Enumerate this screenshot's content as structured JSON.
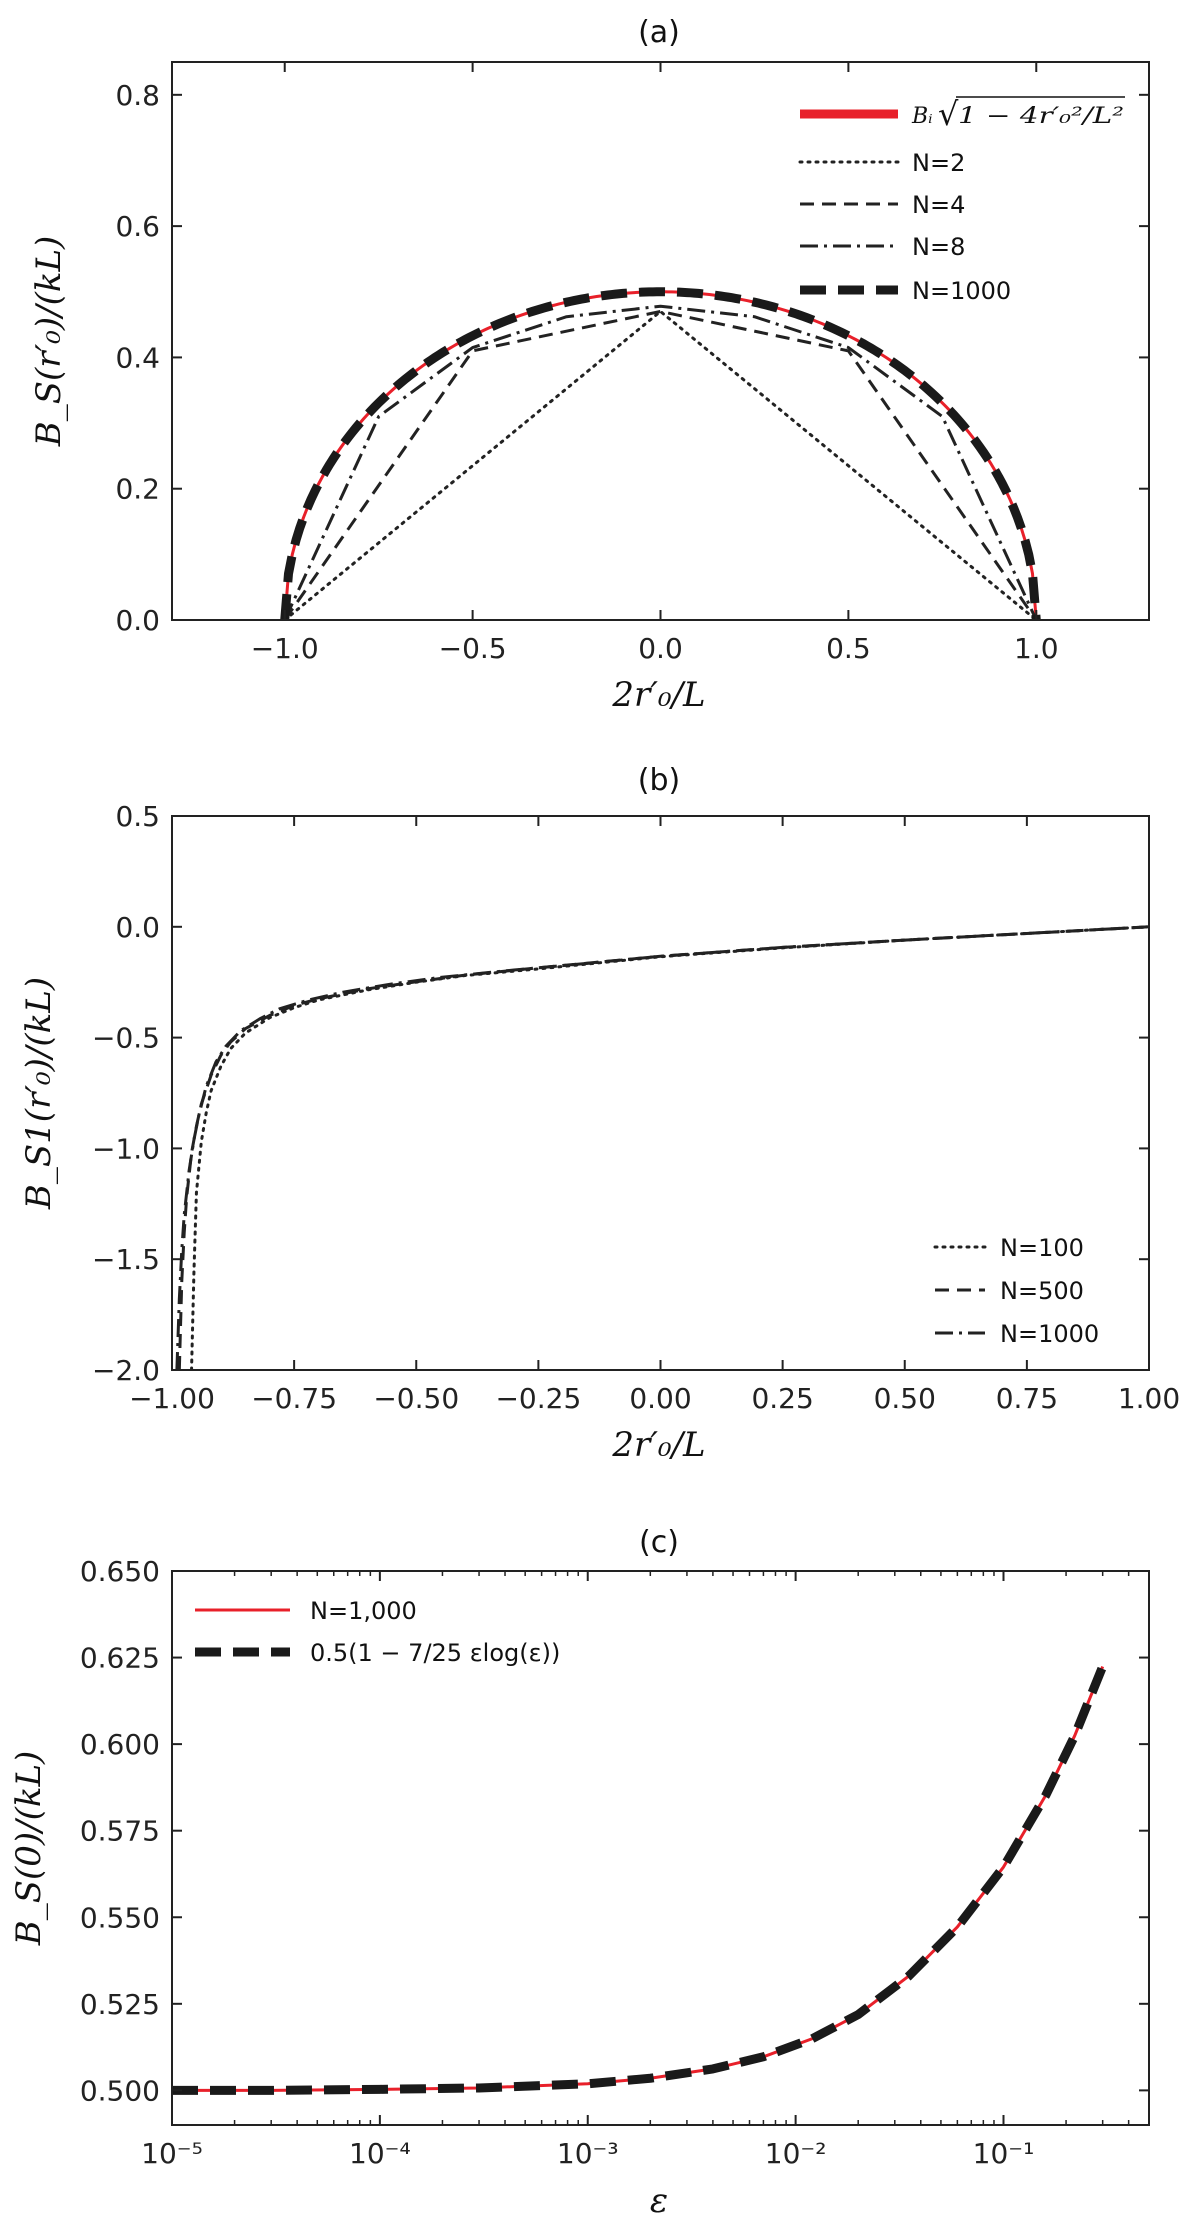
{
  "chart_data": [
    {
      "type": "line",
      "panel": "a",
      "title": "(a)",
      "xlabel": "2r′₀/L",
      "ylabel": "B_S(r′₀)/(kL)",
      "xlim": [
        -1.3,
        1.3
      ],
      "ylim": [
        0.0,
        0.85
      ],
      "xticks": [
        -1.0,
        -0.5,
        0.0,
        0.5,
        1.0
      ],
      "xtick_labels": [
        "−1.0",
        "−0.5",
        "0.0",
        "0.5",
        "1.0"
      ],
      "yticks": [
        0.0,
        0.2,
        0.4,
        0.6,
        0.8
      ],
      "ytick_labels": [
        "0.0",
        "0.2",
        "0.4",
        "0.6",
        "0.8"
      ],
      "legend_position": "top-right",
      "series": [
        {
          "name": "Bᵢ√(1 − 4r′₀²/L²)",
          "label_parts": [
            "Bᵢ",
            "√",
            "1 − 4r′₀²/L²"
          ],
          "style": "solid",
          "color": "#e8202a",
          "curve": "semicircle",
          "amplitude": 0.5
        },
        {
          "name": "N=2",
          "style": "dotted",
          "color": "#222222",
          "x": [
            -1.0,
            0.0,
            1.0
          ],
          "y": [
            0.0,
            0.47,
            0.0
          ]
        },
        {
          "name": "N=4",
          "style": "dashed",
          "color": "#222222",
          "x": [
            -1.0,
            -0.5,
            0.0,
            0.5,
            1.0
          ],
          "y": [
            0.0,
            0.41,
            0.47,
            0.41,
            0.0
          ]
        },
        {
          "name": "N=8",
          "style": "dashdot",
          "color": "#222222",
          "x": [
            -1.0,
            -0.75,
            -0.5,
            -0.25,
            0.0,
            0.25,
            0.5,
            0.75,
            1.0
          ],
          "y": [
            0.0,
            0.31,
            0.415,
            0.462,
            0.478,
            0.462,
            0.415,
            0.31,
            0.0
          ]
        },
        {
          "name": "N=1000",
          "style": "thick-dashed",
          "color": "#1a1a1a",
          "curve": "semicircle",
          "amplitude": 0.5
        }
      ]
    },
    {
      "type": "line",
      "panel": "b",
      "title": "(b)",
      "xlabel": "2r′₀/L",
      "ylabel": "B_S1(r′₀)/(kL)",
      "xlim": [
        -1.0,
        1.0
      ],
      "ylim": [
        -2.0,
        0.5
      ],
      "xticks": [
        -1.0,
        -0.75,
        -0.5,
        -0.25,
        0.0,
        0.25,
        0.5,
        0.75,
        1.0
      ],
      "xtick_labels": [
        "−1.00",
        "−0.75",
        "−0.50",
        "−0.25",
        "0.00",
        "0.25",
        "0.50",
        "0.75",
        "1.00"
      ],
      "yticks": [
        -2.0,
        -1.5,
        -1.0,
        -0.5,
        0.0,
        0.5
      ],
      "ytick_labels": [
        "−2.0",
        "−1.5",
        "−1.0",
        "−0.5",
        "0.0",
        "0.5"
      ],
      "legend_position": "bottom-right",
      "series": [
        {
          "name": "N=100",
          "style": "dotted",
          "color": "#222222",
          "x": [
            -0.96,
            -0.955,
            -0.95,
            -0.94,
            -0.93,
            -0.92,
            -0.9,
            -0.88,
            -0.85,
            -0.8,
            -0.75,
            -0.7,
            -0.6,
            -0.5,
            -0.4,
            -0.25,
            0.0,
            0.25,
            0.5,
            0.75,
            1.0
          ],
          "y": [
            -2.0,
            -1.55,
            -1.2,
            -0.97,
            -0.84,
            -0.74,
            -0.63,
            -0.55,
            -0.48,
            -0.41,
            -0.365,
            -0.33,
            -0.285,
            -0.25,
            -0.22,
            -0.19,
            -0.135,
            -0.095,
            -0.06,
            -0.03,
            0.0
          ]
        },
        {
          "name": "N=500",
          "style": "dashed",
          "color": "#222222",
          "x": [
            -0.985,
            -0.98,
            -0.975,
            -0.97,
            -0.96,
            -0.95,
            -0.94,
            -0.92,
            -0.9,
            -0.88,
            -0.85,
            -0.8,
            -0.75,
            -0.7,
            -0.6,
            -0.5,
            -0.4,
            -0.25,
            0.0,
            0.25,
            0.5,
            0.75,
            1.0
          ],
          "y": [
            -2.0,
            -1.6,
            -1.38,
            -1.22,
            -1.02,
            -0.9,
            -0.8,
            -0.67,
            -0.58,
            -0.52,
            -0.46,
            -0.4,
            -0.355,
            -0.325,
            -0.28,
            -0.248,
            -0.218,
            -0.185,
            -0.133,
            -0.093,
            -0.06,
            -0.03,
            0.0
          ]
        },
        {
          "name": "N=1000",
          "style": "dashdot",
          "color": "#222222",
          "x": [
            -0.99,
            -0.985,
            -0.98,
            -0.975,
            -0.965,
            -0.955,
            -0.945,
            -0.93,
            -0.91,
            -0.89,
            -0.86,
            -0.82,
            -0.78,
            -0.72,
            -0.65,
            -0.55,
            -0.45,
            -0.3,
            -0.15,
            0.0,
            0.25,
            0.5,
            0.75,
            1.0
          ],
          "y": [
            -2.0,
            -1.68,
            -1.46,
            -1.3,
            -1.1,
            -0.96,
            -0.85,
            -0.72,
            -0.61,
            -0.54,
            -0.47,
            -0.415,
            -0.37,
            -0.33,
            -0.295,
            -0.258,
            -0.228,
            -0.195,
            -0.165,
            -0.133,
            -0.093,
            -0.06,
            -0.03,
            0.0
          ]
        }
      ]
    },
    {
      "type": "line",
      "panel": "c",
      "title": "(c)",
      "xlabel": "ε",
      "ylabel": "B_S(0)/(kL)",
      "xscale": "log",
      "xlim_log10": [
        -5,
        -0.3
      ],
      "ylim": [
        0.49,
        0.65
      ],
      "xticks_log10": [
        -5,
        -4,
        -3,
        -2,
        -1
      ],
      "xtick_labels": [
        "10⁻⁵",
        "10⁻⁴",
        "10⁻³",
        "10⁻²",
        "10⁻¹"
      ],
      "yticks": [
        0.5,
        0.525,
        0.55,
        0.575,
        0.6,
        0.625,
        0.65
      ],
      "ytick_labels": [
        "0.500",
        "0.525",
        "0.550",
        "0.575",
        "0.600",
        "0.625",
        "0.650"
      ],
      "legend_position": "top-left",
      "series": [
        {
          "name": "N=1,000",
          "style": "solid",
          "color": "#e8202a",
          "x": [
            1e-05,
            3e-05,
            0.0001,
            0.0003,
            0.001,
            0.002,
            0.004,
            0.007,
            0.012,
            0.02,
            0.035,
            0.06,
            0.1,
            0.16,
            0.22,
            0.3
          ],
          "y": [
            0.5,
            0.5,
            0.5003,
            0.5007,
            0.5019,
            0.5035,
            0.5062,
            0.5097,
            0.5149,
            0.5219,
            0.533,
            0.5472,
            0.5645,
            0.5853,
            0.6024,
            0.6224
          ]
        },
        {
          "name": "0.5(1 − 7/25 εlog(ε))",
          "style": "thick-dashed",
          "color": "#1a1a1a",
          "x": [
            1e-05,
            3e-05,
            0.0001,
            0.0003,
            0.001,
            0.002,
            0.004,
            0.007,
            0.012,
            0.02,
            0.035,
            0.06,
            0.1,
            0.16,
            0.22,
            0.3
          ],
          "y": [
            0.5,
            0.5,
            0.5003,
            0.5007,
            0.5019,
            0.5035,
            0.5062,
            0.5097,
            0.5149,
            0.5219,
            0.533,
            0.5472,
            0.5645,
            0.5853,
            0.6024,
            0.6224
          ]
        }
      ]
    }
  ]
}
